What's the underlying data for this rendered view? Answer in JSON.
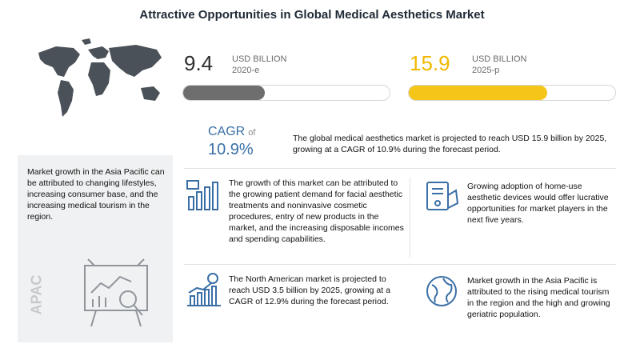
{
  "title": "Attractive Opportunities in Global Medical Aesthetics Market",
  "chart_data": {
    "type": "bar",
    "categories": [
      "2020-e",
      "2025-p"
    ],
    "values": [
      9.4,
      15.9
    ],
    "unit": "USD BILLION",
    "colors": [
      "#6e6e6e",
      "#f5c518"
    ],
    "cagr_label": "CAGR",
    "cagr_of": "of",
    "cagr_value": "10.9%"
  },
  "stats": [
    {
      "value": "9.4",
      "unit": "USD BILLION",
      "year": "2020-e"
    },
    {
      "value": "15.9",
      "unit": "USD BILLION",
      "year": "2025-p"
    }
  ],
  "headline": "The global medical aesthetics market is projected to reach USD 15.9 billion by 2025, growing at a CAGR of 10.9% during the forecast period.",
  "left_panel": {
    "text": "Market growth in the Asia Pacific can be attributed to changing lifestyles, increasing consumer base, and the increasing medical tourism in the region.",
    "region": "APAC"
  },
  "cards": [
    {
      "icon": "bar-chart-icon",
      "text": "The growth of this market can be attributed to the growing patient demand for facial aesthetic treatments and noninvasive cosmetic procedures, entry of new products in the market, and the increasing disposable incomes and spending capabilities."
    },
    {
      "icon": "device-icon",
      "text": "Growing adoption of home-use aesthetic devices would offer lucrative opportunities for market players in the next five years."
    },
    {
      "icon": "growth-chart-icon",
      "text": "The North American market is projected to reach USD 3.5 billion by 2025, growing at a CAGR of 12.9% during the forecast period."
    },
    {
      "icon": "globe-icon",
      "text": "Market growth in the Asia Pacific is attributed to the rising medical tourism in the region and the high and growing geriatric population."
    }
  ],
  "accent_blue": "#3a6fa6"
}
